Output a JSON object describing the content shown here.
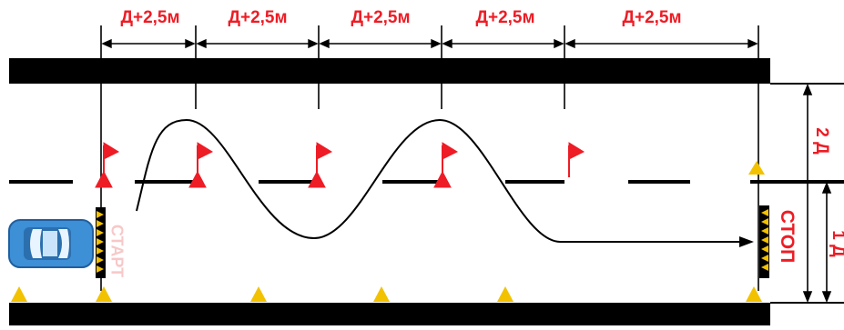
{
  "diagram": {
    "segments": [
      {
        "label": "Д+2,5м"
      },
      {
        "label": "Д+2,5м"
      },
      {
        "label": "Д+2,5м"
      },
      {
        "label": "Д+2,5м"
      },
      {
        "label": "Д+2,5м"
      }
    ],
    "start_label": "СТАРТ",
    "stop_label": "СТОП",
    "width_total_label": "2 Д",
    "width_lane_label": "1 Д",
    "colors": {
      "road_edge": "#000000",
      "marker_red": "#ee1c25",
      "cone_yellow": "#f2c200",
      "car_blue": "#3d8fd6",
      "start_text": "#f7c8c8"
    }
  }
}
